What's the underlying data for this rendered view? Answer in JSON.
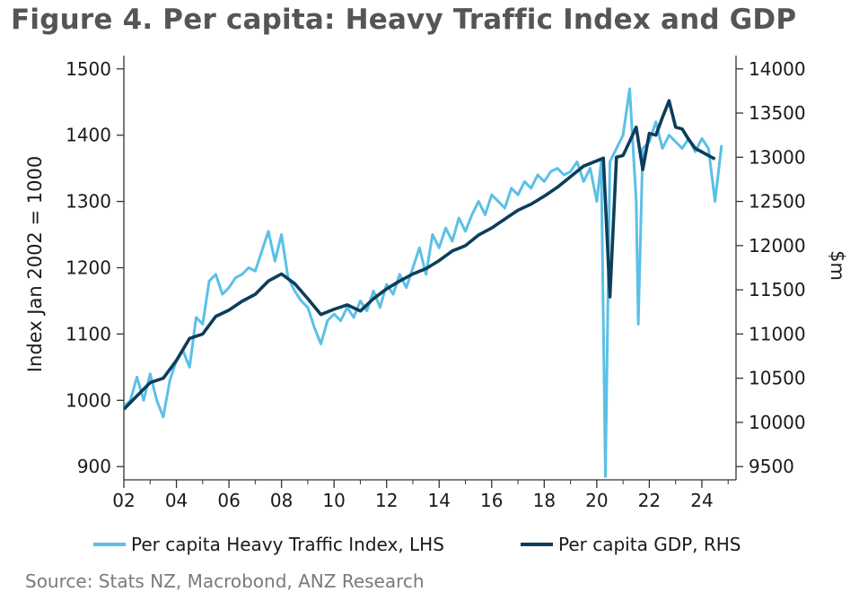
{
  "title": "Figure 4. Per capita: Heavy Traffic Index and GDP",
  "source": "Source: Stats NZ, Macrobond, ANZ Research",
  "colors": {
    "hti": "#5bc0e6",
    "gdp": "#0d3d5c",
    "axis": "#333333",
    "title": "#555555"
  },
  "chart_data": {
    "type": "line",
    "title": "Figure 4. Per capita: Heavy Traffic Index and GDP",
    "grid": false,
    "legend_position": "bottom",
    "x_ticks": [
      "02",
      "04",
      "06",
      "08",
      "10",
      "12",
      "14",
      "16",
      "18",
      "20",
      "22",
      "24"
    ],
    "x_range": [
      2002,
      2025.3
    ],
    "y_left": {
      "label": "Index Jan 2002 = 1000",
      "range": [
        880,
        1520
      ],
      "ticks": [
        "900",
        "1000",
        "1100",
        "1200",
        "1300",
        "1400",
        "1500"
      ]
    },
    "y_right": {
      "label": "$m",
      "range": [
        9350,
        14150
      ],
      "ticks": [
        "9500",
        "10000",
        "10500",
        "11000",
        "11500",
        "12000",
        "12500",
        "13000",
        "13500",
        "14000"
      ]
    },
    "series": [
      {
        "name": "Per capita Heavy Traffic Index, LHS",
        "axis": "left",
        "x": [
          2002.0,
          2002.25,
          2002.5,
          2002.75,
          2003.0,
          2003.25,
          2003.5,
          2003.75,
          2004.0,
          2004.25,
          2004.5,
          2004.75,
          2005.0,
          2005.25,
          2005.5,
          2005.75,
          2006.0,
          2006.25,
          2006.5,
          2006.75,
          2007.0,
          2007.25,
          2007.5,
          2007.75,
          2008.0,
          2008.25,
          2008.5,
          2008.75,
          2009.0,
          2009.25,
          2009.5,
          2009.75,
          2010.0,
          2010.25,
          2010.5,
          2010.75,
          2011.0,
          2011.25,
          2011.5,
          2011.75,
          2012.0,
          2012.25,
          2012.5,
          2012.75,
          2013.0,
          2013.25,
          2013.5,
          2013.75,
          2014.0,
          2014.25,
          2014.5,
          2014.75,
          2015.0,
          2015.25,
          2015.5,
          2015.75,
          2016.0,
          2016.25,
          2016.5,
          2016.75,
          2017.0,
          2017.25,
          2017.5,
          2017.75,
          2018.0,
          2018.25,
          2018.5,
          2018.75,
          2019.0,
          2019.25,
          2019.5,
          2019.75,
          2020.0,
          2020.17,
          2020.33,
          2020.5,
          2020.75,
          2021.0,
          2021.25,
          2021.5,
          2021.58,
          2021.75,
          2022.0,
          2022.25,
          2022.5,
          2022.75,
          2023.0,
          2023.25,
          2023.5,
          2023.75,
          2024.0,
          2024.25,
          2024.5,
          2024.75
        ],
        "values": [
          990,
          1000,
          1035,
          1000,
          1040,
          1000,
          975,
          1030,
          1060,
          1075,
          1050,
          1125,
          1115,
          1180,
          1190,
          1160,
          1170,
          1185,
          1190,
          1200,
          1195,
          1225,
          1255,
          1210,
          1250,
          1185,
          1165,
          1150,
          1140,
          1110,
          1085,
          1120,
          1130,
          1120,
          1140,
          1125,
          1150,
          1135,
          1165,
          1140,
          1175,
          1160,
          1190,
          1170,
          1200,
          1230,
          1190,
          1250,
          1230,
          1260,
          1240,
          1275,
          1255,
          1280,
          1300,
          1280,
          1310,
          1300,
          1290,
          1320,
          1310,
          1330,
          1320,
          1340,
          1330,
          1345,
          1350,
          1340,
          1345,
          1360,
          1330,
          1350,
          1300,
          1360,
          885,
          1360,
          1380,
          1400,
          1470,
          1300,
          1115,
          1380,
          1390,
          1420,
          1380,
          1400,
          1390,
          1380,
          1395,
          1375,
          1395,
          1380,
          1300,
          1385
        ]
      },
      {
        "name": "Per capita GDP, RHS",
        "axis": "right",
        "x": [
          2002.0,
          2002.5,
          2003.0,
          2003.5,
          2004.0,
          2004.5,
          2005.0,
          2005.5,
          2006.0,
          2006.5,
          2007.0,
          2007.5,
          2008.0,
          2008.5,
          2009.0,
          2009.5,
          2010.0,
          2010.5,
          2011.0,
          2011.5,
          2012.0,
          2012.5,
          2013.0,
          2013.5,
          2014.0,
          2014.5,
          2015.0,
          2015.5,
          2016.0,
          2016.5,
          2017.0,
          2017.5,
          2018.0,
          2018.5,
          2019.0,
          2019.5,
          2020.0,
          2020.25,
          2020.5,
          2020.75,
          2021.0,
          2021.25,
          2021.5,
          2021.75,
          2022.0,
          2022.25,
          2022.5,
          2022.75,
          2023.0,
          2023.25,
          2023.5,
          2023.75,
          2024.0,
          2024.25,
          2024.5
        ],
        "values": [
          10150,
          10300,
          10450,
          10500,
          10700,
          10950,
          11000,
          11200,
          11270,
          11370,
          11450,
          11600,
          11680,
          11570,
          11400,
          11220,
          11280,
          11330,
          11260,
          11400,
          11510,
          11600,
          11680,
          11740,
          11830,
          11940,
          12000,
          12120,
          12200,
          12300,
          12400,
          12470,
          12560,
          12660,
          12780,
          12900,
          12960,
          12990,
          11420,
          13000,
          13020,
          13180,
          13340,
          12860,
          13270,
          13250,
          13450,
          13640,
          13340,
          13320,
          13200,
          13100,
          13060,
          13020,
          12980
        ]
      }
    ]
  }
}
